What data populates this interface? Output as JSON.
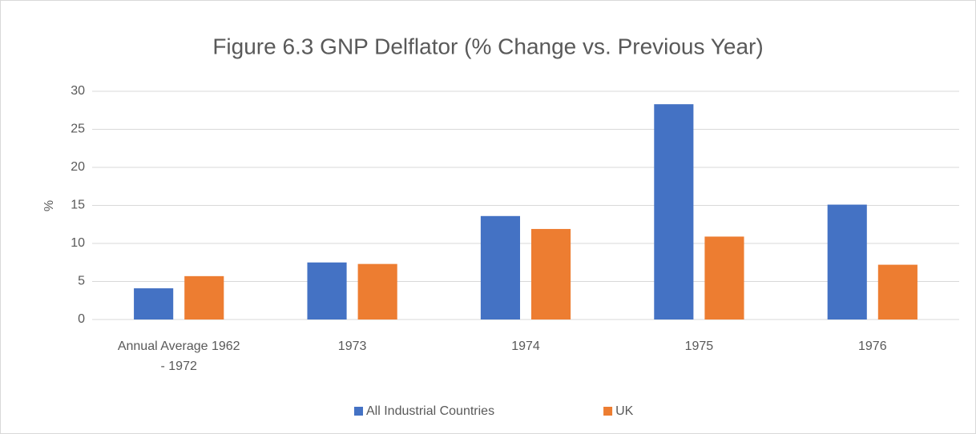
{
  "chart_data": {
    "type": "bar",
    "title": "Figure 6.3 GNP Delflator (% Change vs. Previous Year)",
    "y_label": "%",
    "categories": [
      "Annual Average 1962 - 1972",
      "1973",
      "1974",
      "1975",
      "1976"
    ],
    "series": [
      {
        "name": "All Industrial Countries",
        "color": "#4472c4",
        "values": [
          4.1,
          7.5,
          13.6,
          28.3,
          15.1
        ]
      },
      {
        "name": "UK",
        "color": "#ed7d31",
        "values": [
          5.7,
          7.3,
          11.9,
          10.9,
          7.2
        ]
      }
    ],
    "ylim": [
      0,
      30
    ],
    "yticks": [
      0,
      5,
      10,
      15,
      20,
      25,
      30
    ],
    "grid": true,
    "legend": "bottom"
  }
}
